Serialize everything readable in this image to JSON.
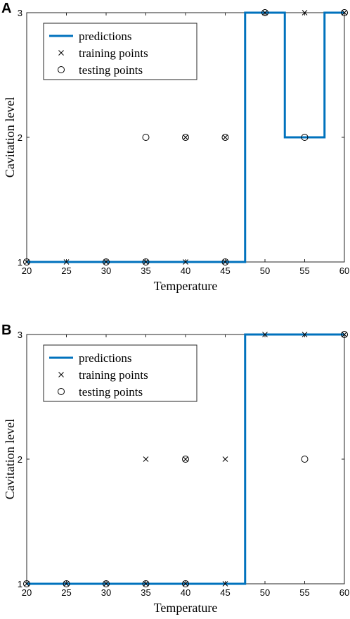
{
  "chart_data": [
    {
      "panel_label": "A",
      "type": "line",
      "xlabel": "Temperature",
      "ylabel": "Cavitation level",
      "xlim": [
        20,
        60
      ],
      "ylim": [
        1,
        3
      ],
      "xticks": [
        20,
        25,
        30,
        35,
        40,
        45,
        50,
        55,
        60
      ],
      "yticks": [
        1,
        2,
        3
      ],
      "grid": false,
      "legend_position": "top-left",
      "legend": [
        "predictions",
        "training points",
        "testing points"
      ],
      "series": [
        {
          "name": "predictions",
          "style": "line",
          "color": "#0072BD",
          "x": [
            20,
            47.5,
            47.5,
            52.5,
            52.5,
            57.5,
            57.5,
            60
          ],
          "y": [
            1,
            1,
            3,
            3,
            2,
            2,
            3,
            3
          ]
        },
        {
          "name": "training points",
          "style": "x-marker",
          "color": "#000000",
          "x": [
            20,
            25,
            30,
            35,
            40,
            45,
            40,
            45,
            50,
            55,
            60
          ],
          "y": [
            1,
            1,
            1,
            1,
            1,
            1,
            2,
            2,
            3,
            3,
            3
          ]
        },
        {
          "name": "testing points",
          "style": "o-marker",
          "color": "#000000",
          "x": [
            20,
            30,
            35,
            45,
            35,
            40,
            45,
            50,
            55,
            60
          ],
          "y": [
            1,
            1,
            1,
            1,
            2,
            2,
            2,
            3,
            2,
            3
          ]
        }
      ]
    },
    {
      "panel_label": "B",
      "type": "line",
      "xlabel": "Temperature",
      "ylabel": "Cavitation level",
      "xlim": [
        20,
        60
      ],
      "ylim": [
        1,
        3
      ],
      "xticks": [
        20,
        25,
        30,
        35,
        40,
        45,
        50,
        55,
        60
      ],
      "yticks": [
        1,
        2,
        3
      ],
      "grid": false,
      "legend_position": "top-left",
      "legend": [
        "predictions",
        "training points",
        "testing points"
      ],
      "series": [
        {
          "name": "predictions",
          "style": "line",
          "color": "#0072BD",
          "x": [
            20,
            47.5,
            47.5,
            60
          ],
          "y": [
            1,
            1,
            3,
            3
          ]
        },
        {
          "name": "training points",
          "style": "x-marker",
          "color": "#000000",
          "x": [
            20,
            25,
            30,
            35,
            40,
            45,
            35,
            40,
            45,
            50,
            55,
            60
          ],
          "y": [
            1,
            1,
            1,
            1,
            1,
            1,
            2,
            2,
            2,
            3,
            3,
            3
          ]
        },
        {
          "name": "testing points",
          "style": "o-marker",
          "color": "#000000",
          "x": [
            20,
            25,
            30,
            35,
            40,
            40,
            55,
            60
          ],
          "y": [
            1,
            1,
            1,
            1,
            1,
            2,
            2,
            3
          ]
        }
      ]
    }
  ]
}
